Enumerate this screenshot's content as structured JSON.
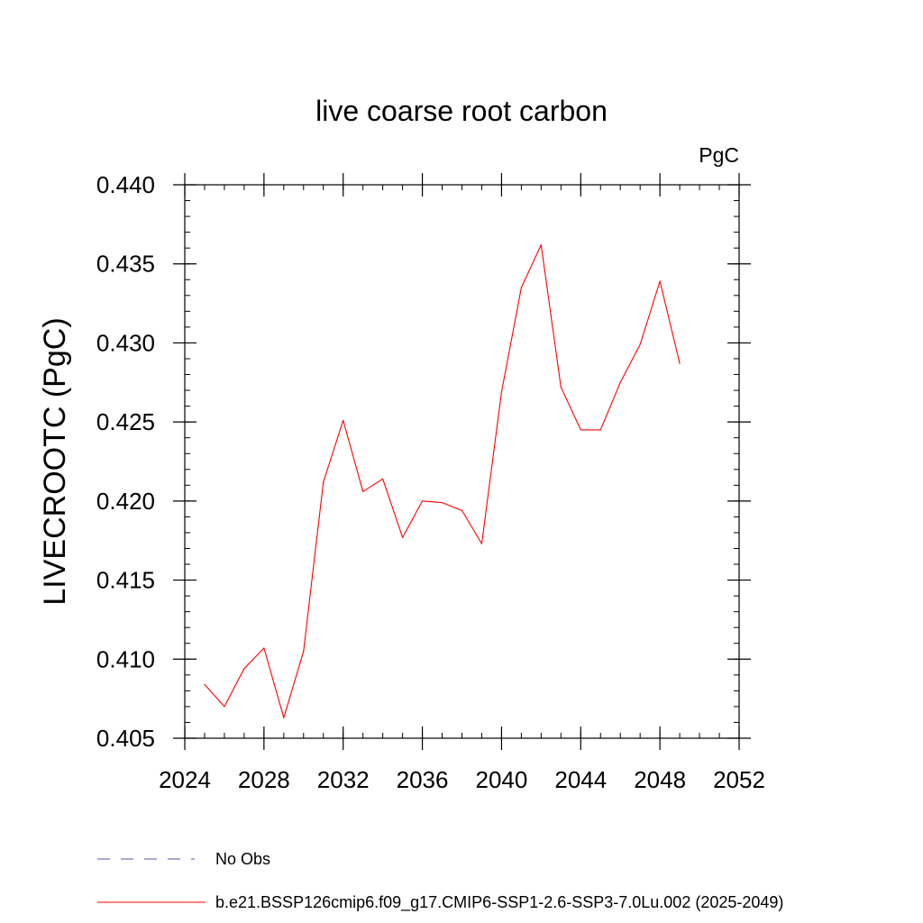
{
  "chart_data": {
    "type": "line",
    "title": "live coarse root carbon",
    "units": "PgC",
    "ylabel": "LIVECROOTC  (PgC)",
    "xlabel": "",
    "xlim": [
      2024,
      2052
    ],
    "ylim": [
      0.405,
      0.44
    ],
    "x_ticks": [
      2024,
      2028,
      2032,
      2036,
      2040,
      2044,
      2048,
      2052
    ],
    "x_tick_labels": [
      "2024",
      "2028",
      "2032",
      "2036",
      "2040",
      "2044",
      "2048",
      "2052"
    ],
    "y_ticks": [
      0.405,
      0.41,
      0.415,
      0.42,
      0.425,
      0.43,
      0.435,
      0.44
    ],
    "y_tick_labels": [
      "0.405",
      "0.410",
      "0.415",
      "0.420",
      "0.425",
      "0.430",
      "0.435",
      "0.440"
    ],
    "x_minor_step": 1,
    "y_minor_step": 0.001,
    "series": [
      {
        "name": "b.e21.BSSP126cmip6.f09_g17.CMIP6-SSP1-2.6-SSP3-7.0Lu.002 (2025-2049)",
        "color": "#ff0000",
        "x": [
          2025,
          2026,
          2027,
          2028,
          2029,
          2030,
          2031,
          2032,
          2033,
          2034,
          2035,
          2036,
          2037,
          2038,
          2039,
          2040,
          2041,
          2042,
          2043,
          2044,
          2045,
          2046,
          2047,
          2048,
          2049
        ],
        "values": [
          0.4084,
          0.407,
          0.4094,
          0.4107,
          0.4063,
          0.4105,
          0.4212,
          0.4251,
          0.4206,
          0.4214,
          0.4177,
          0.42,
          0.4199,
          0.4194,
          0.4173,
          0.4269,
          0.4335,
          0.4362,
          0.4272,
          0.4245,
          0.4245,
          0.4275,
          0.4299,
          0.4339,
          0.4287
        ]
      }
    ],
    "legend": [
      {
        "label": "No Obs",
        "color": "#5a4fa8",
        "style": "dashed"
      },
      {
        "label": "b.e21.BSSP126cmip6.f09_g17.CMIP6-SSP1-2.6-SSP3-7.0Lu.002 (2025-2049)",
        "color": "#ff0000",
        "style": "solid"
      }
    ]
  }
}
